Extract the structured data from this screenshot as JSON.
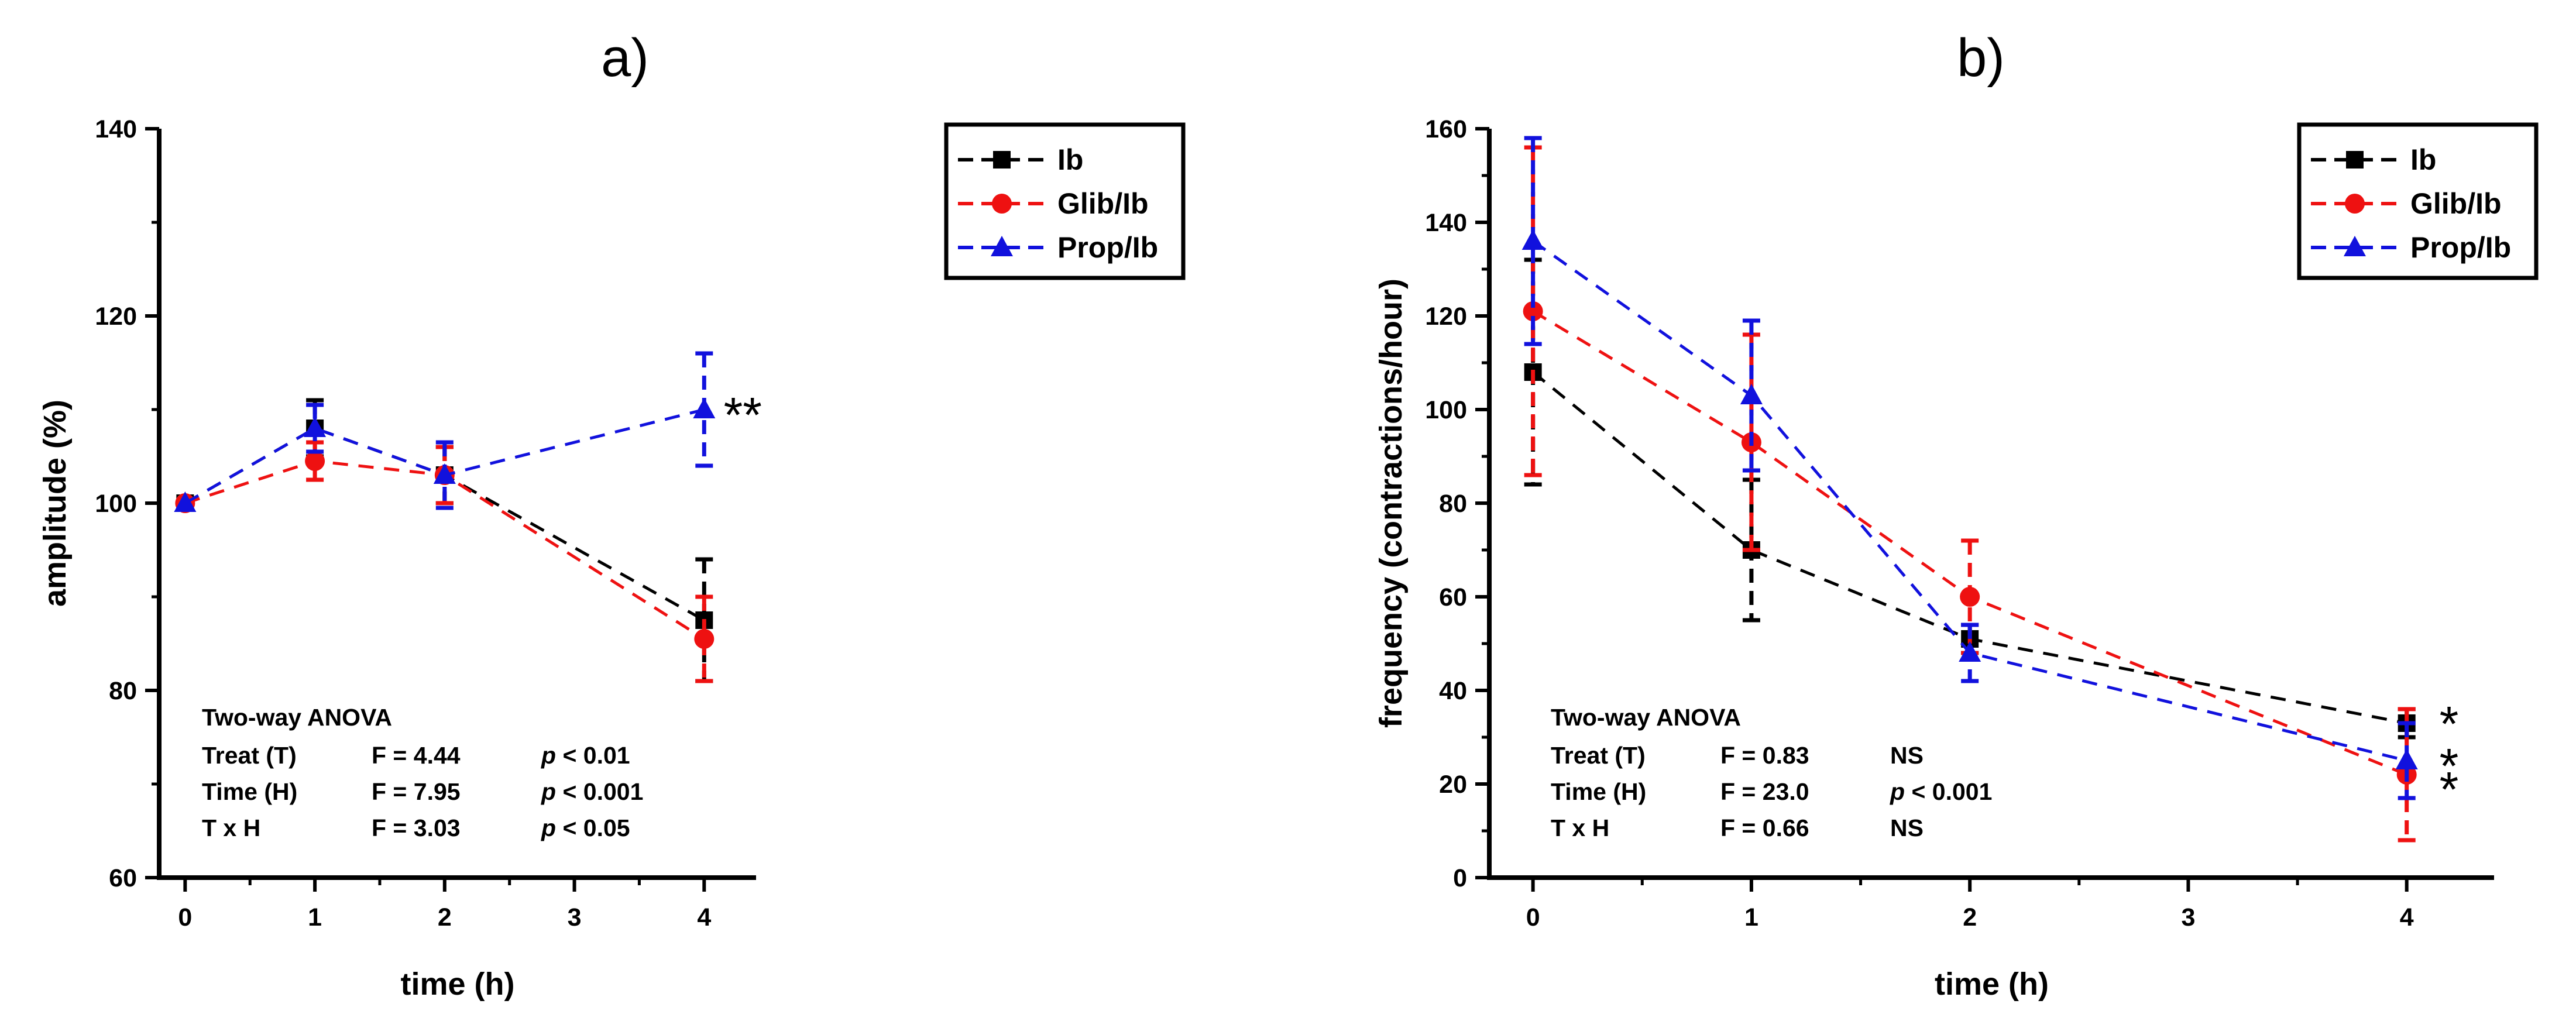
{
  "chart_data": [
    {
      "panel_label": "a)",
      "type": "line",
      "xlabel": "time (h)",
      "ylabel": "amplitude (%)",
      "xlim": [
        -0.2,
        4.4
      ],
      "ylim": [
        60,
        140
      ],
      "xticks": [
        0,
        1,
        2,
        3,
        4
      ],
      "yticks": [
        60,
        80,
        100,
        120,
        140
      ],
      "series": [
        {
          "name": "Ib",
          "color": "#000000",
          "marker": "square",
          "x": [
            0,
            1,
            2,
            4
          ],
          "y": [
            100,
            108,
            103,
            87.5
          ],
          "err": [
            0,
            3,
            3,
            6.5
          ]
        },
        {
          "name": "Glib/Ib",
          "color": "#ee1111",
          "marker": "circle",
          "x": [
            0,
            1,
            2,
            4
          ],
          "y": [
            100,
            104.5,
            103,
            85.5
          ],
          "err": [
            0,
            2,
            3,
            4.5
          ]
        },
        {
          "name": "Prop/Ib",
          "color": "#1111dd",
          "marker": "triangle",
          "x": [
            0,
            1,
            2,
            4
          ],
          "y": [
            100,
            108,
            103,
            110
          ],
          "err": [
            0,
            2.5,
            3.5,
            6
          ]
        }
      ],
      "annotations": [
        {
          "text": "**",
          "x": 4.15,
          "y": 110
        }
      ],
      "stats": {
        "title": "Two-way ANOVA",
        "rows": [
          {
            "label": "Treat (T)",
            "f": "F = 4.44",
            "p_prefix": "p",
            "p_value": " < 0.01"
          },
          {
            "label": "Time (H)",
            "f": "F = 7.95",
            "p_prefix": "p",
            "p_value": " < 0.001"
          },
          {
            "label": "T x H",
            "f": "F = 3.03",
            "p_prefix": "p",
            "p_value": " < 0.05"
          }
        ]
      }
    },
    {
      "panel_label": "b)",
      "type": "line",
      "xlabel": "time (h)",
      "ylabel": "frequency (contractions/hour)",
      "xlim": [
        -0.2,
        4.4
      ],
      "ylim": [
        0,
        160
      ],
      "xticks": [
        0,
        1,
        2,
        3,
        4
      ],
      "yticks": [
        0,
        20,
        40,
        60,
        80,
        100,
        120,
        140,
        160
      ],
      "series": [
        {
          "name": "Ib",
          "color": "#000000",
          "marker": "square",
          "x": [
            0,
            1,
            2,
            4
          ],
          "y": [
            108,
            70,
            51,
            33
          ],
          "err": [
            24,
            15,
            3,
            3
          ]
        },
        {
          "name": "Glib/Ib",
          "color": "#ee1111",
          "marker": "circle",
          "x": [
            0,
            1,
            2,
            4
          ],
          "y": [
            121,
            93,
            60,
            22
          ],
          "err": [
            35,
            23,
            12,
            14
          ]
        },
        {
          "name": "Prop/Ib",
          "color": "#1111dd",
          "marker": "triangle",
          "x": [
            0,
            1,
            2,
            4
          ],
          "y": [
            136,
            103,
            48,
            25
          ],
          "err": [
            22,
            16,
            6,
            8
          ]
        }
      ],
      "annotations": [
        {
          "text": "*",
          "x": 4.15,
          "y": 34
        },
        {
          "text": "*",
          "x": 4.15,
          "y": 25
        },
        {
          "text": "*",
          "x": 4.15,
          "y": 20
        }
      ],
      "stats": {
        "title": "Two-way ANOVA",
        "rows": [
          {
            "label": "Treat (T)",
            "f": "F = 0.83",
            "p_prefix": "",
            "p_value": "NS"
          },
          {
            "label": "Time (H)",
            "f": "F = 23.0",
            "p_prefix": "p",
            "p_value": " < 0.001"
          },
          {
            "label": "T x H",
            "f": "F = 0.66",
            "p_prefix": "",
            "p_value": "NS"
          }
        ]
      }
    }
  ]
}
